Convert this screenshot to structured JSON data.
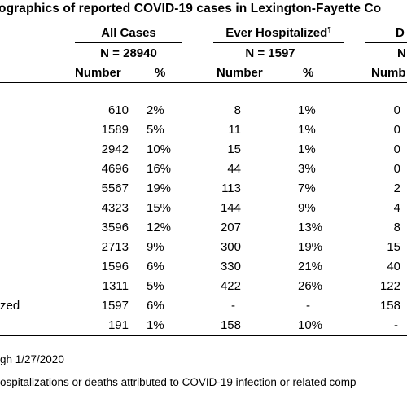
{
  "title": "ographics of reported COVID-19 cases in Lexington-Fayette Co",
  "groups": {
    "all_cases": "All Cases",
    "ever_hospitalized": "Ever Hospitalized",
    "ever_hospitalized_marker": "¶",
    "deaths_partial": "D"
  },
  "n_values": {
    "all_cases": "N = 28940",
    "ever_hospitalized": "N = 1597",
    "deaths_partial": "N"
  },
  "subheaders": {
    "number": "Number",
    "percent": "%",
    "deaths_number_partial": "Numb"
  },
  "rows": [
    {
      "all_num": "610",
      "all_pct": "2%",
      "hosp_num": "8",
      "hosp_pct": "1%",
      "death_num": "0"
    },
    {
      "all_num": "1589",
      "all_pct": "5%",
      "hosp_num": "11",
      "hosp_pct": "1%",
      "death_num": "0"
    },
    {
      "all_num": "2942",
      "all_pct": "10%",
      "hosp_num": "15",
      "hosp_pct": "1%",
      "death_num": "0"
    },
    {
      "all_num": "4696",
      "all_pct": "16%",
      "hosp_num": "44",
      "hosp_pct": "3%",
      "death_num": "0"
    },
    {
      "all_num": "5567",
      "all_pct": "19%",
      "hosp_num": "113",
      "hosp_pct": "7%",
      "death_num": "2"
    },
    {
      "all_num": "4323",
      "all_pct": "15%",
      "hosp_num": "144",
      "hosp_pct": "9%",
      "death_num": "4"
    },
    {
      "all_num": "3596",
      "all_pct": "12%",
      "hosp_num": "207",
      "hosp_pct": "13%",
      "death_num": "8"
    },
    {
      "all_num": "2713",
      "all_pct": "9%",
      "hosp_num": "300",
      "hosp_pct": "19%",
      "death_num": "15"
    },
    {
      "all_num": "1596",
      "all_pct": "6%",
      "hosp_num": "330",
      "hosp_pct": "21%",
      "death_num": "40"
    },
    {
      "all_num": "1311",
      "all_pct": "5%",
      "hosp_num": "422",
      "hosp_pct": "26%",
      "death_num": "122"
    },
    {
      "label": "zed",
      "all_num": "1597",
      "all_pct": "6%",
      "hosp_num": "-",
      "hosp_pct": "-",
      "death_num": "158"
    },
    {
      "all_num": "191",
      "all_pct": "1%",
      "hosp_num": "158",
      "hosp_pct": "10%",
      "death_num": "-"
    }
  ],
  "footnotes": {
    "date_note": "gh 1/27/2020",
    "definition_note": "ospitalizations or deaths attributed to COVID-19 infection or related comp"
  }
}
